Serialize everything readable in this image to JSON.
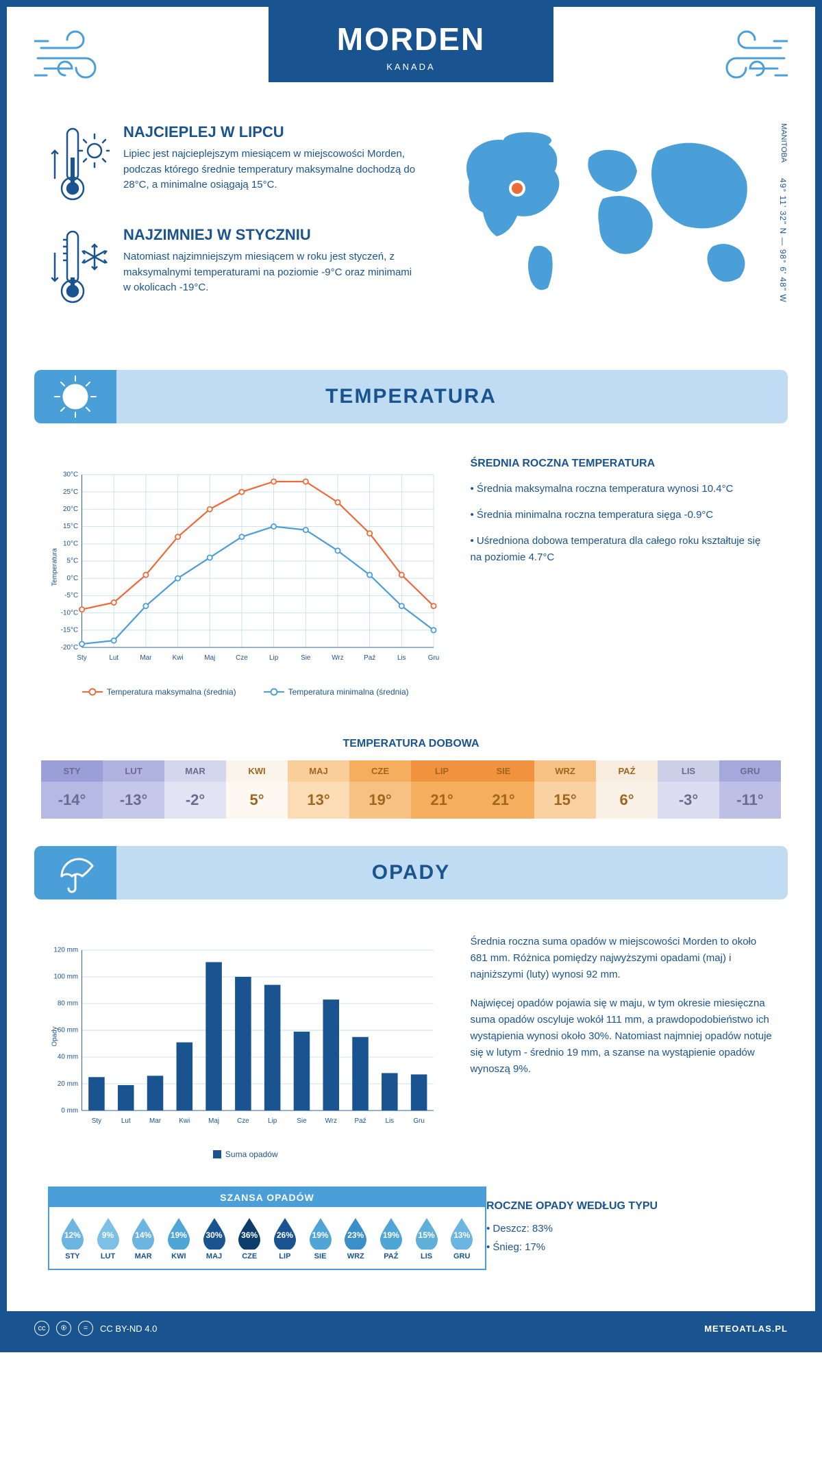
{
  "header": {
    "city": "MORDEN",
    "country": "KANADA"
  },
  "coords": "49° 11' 32\" N — 98° 6' 48\" W",
  "region": "MANITOBA",
  "intro": {
    "hot": {
      "title": "NAJCIEPLEJ W LIPCU",
      "text": "Lipiec jest najcieplejszym miesiącem w miejscowości Morden, podczas którego średnie temperatury maksymalne dochodzą do 28°C, a minimalne osiągają 15°C."
    },
    "cold": {
      "title": "NAJZIMNIEJ W STYCZNIU",
      "text": "Natomiast najzimniejszym miesiącem w roku jest styczeń, z maksymalnymi temperaturami na poziomie -9°C oraz minimami w okolicach -19°C."
    }
  },
  "sections": {
    "temperature_title": "TEMPERATURA",
    "precipitation_title": "OPADY"
  },
  "months_short": [
    "Sty",
    "Lut",
    "Mar",
    "Kwi",
    "Maj",
    "Cze",
    "Lip",
    "Sie",
    "Wrz",
    "Paź",
    "Lis",
    "Gru"
  ],
  "months_upper": [
    "STY",
    "LUT",
    "MAR",
    "KWI",
    "MAJ",
    "CZE",
    "LIP",
    "SIE",
    "WRZ",
    "PAŹ",
    "LIS",
    "GRU"
  ],
  "temp_chart": {
    "type": "line",
    "y_title": "Temperatura",
    "ylim": [
      -20,
      30
    ],
    "ytick_step": 5,
    "ytick_labels": [
      "-20°C",
      "-15°C",
      "-10°C",
      "-5°C",
      "0°C",
      "5°C",
      "10°C",
      "15°C",
      "20°C",
      "25°C",
      "30°C"
    ],
    "grid_color": "#c5dff2",
    "background": "#ffffff",
    "series": {
      "max": {
        "label": "Temperatura maksymalna (średnia)",
        "color": "#ed6b3a",
        "values": [
          -9,
          -7,
          1,
          12,
          20,
          25,
          28,
          28,
          22,
          13,
          1,
          -8
        ]
      },
      "min": {
        "label": "Temperatura minimalna (średnia)",
        "color": "#4a9fd8",
        "values": [
          -19,
          -18,
          -8,
          0,
          6,
          12,
          15,
          14,
          8,
          1,
          -8,
          -15
        ]
      }
    }
  },
  "temp_text": {
    "heading": "ŚREDNIA ROCZNA TEMPERATURA",
    "bullets": [
      "• Średnia maksymalna roczna temperatura wynosi 10.4°C",
      "• Średnia minimalna roczna temperatura sięga -0.9°C",
      "• Uśredniona dobowa temperatura dla całego roku kształtuje się na poziomie 4.7°C"
    ]
  },
  "daily_temp": {
    "title": "TEMPERATURA DOBOWA",
    "values": [
      "-14°",
      "-13°",
      "-2°",
      "5°",
      "13°",
      "19°",
      "21°",
      "21°",
      "15°",
      "6°",
      "-3°",
      "-11°"
    ],
    "head_colors": [
      "#9b9fd8",
      "#b0b3e0",
      "#d4d6ee",
      "#faf4ea",
      "#f9ce9a",
      "#f5ad5e",
      "#f0923e",
      "#f0923e",
      "#f8c184",
      "#f7ecdd",
      "#cdcfe9",
      "#a5a8db"
    ],
    "val_colors": [
      "#b6b9e3",
      "#c6c8ea",
      "#e2e3f3",
      "#fdf9f2",
      "#fbdcb5",
      "#f8c184",
      "#f5ad5e",
      "#f5ad5e",
      "#fad1a0",
      "#faf1e6",
      "#ddddf1",
      "#bdbfe6"
    ],
    "text_color": "#6b6b8f",
    "text_color_warm": "#a0651e"
  },
  "precip_chart": {
    "type": "bar",
    "y_title": "Opady",
    "ylim": [
      0,
      120
    ],
    "ytick_step": 20,
    "ytick_labels": [
      "0 mm",
      "20 mm",
      "40 mm",
      "60 mm",
      "80 mm",
      "100 mm",
      "120 mm"
    ],
    "bar_color": "#1a5490",
    "legend_label": "Suma opadów",
    "values": [
      25,
      19,
      26,
      51,
      111,
      100,
      94,
      59,
      83,
      55,
      28,
      27
    ]
  },
  "precip_text": {
    "p1": "Średnia roczna suma opadów w miejscowości Morden to około 681 mm. Różnica pomiędzy najwyższymi opadami (maj) i najniższymi (luty) wynosi 92 mm.",
    "p2": "Najwięcej opadów pojawia się w maju, w tym okresie miesięczna suma opadów oscyluje wokół 111 mm, a prawdopodobieństwo ich wystąpienia wynosi około 30%. Natomiast najmniej opadów notuje się w lutym - średnio 19 mm, a szanse na wystąpienie opadów wynoszą 9%."
  },
  "chance": {
    "title": "SZANSA OPADÓW",
    "values": [
      "12%",
      "9%",
      "14%",
      "19%",
      "30%",
      "36%",
      "26%",
      "19%",
      "23%",
      "19%",
      "15%",
      "13%"
    ],
    "colors": [
      "#6bb5e0",
      "#7dc0e6",
      "#6bb5e0",
      "#4fa5d5",
      "#1a5490",
      "#0d3d6b",
      "#1a5490",
      "#4fa5d5",
      "#3a8fc8",
      "#4fa5d5",
      "#5fafd9",
      "#6bb5e0"
    ]
  },
  "precip_type": {
    "heading": "ROCZNE OPADY WEDŁUG TYPU",
    "rain": "• Deszcz: 83%",
    "snow": "• Śnieg: 17%"
  },
  "footer": {
    "license": "CC BY-ND 4.0",
    "site": "METEOATLAS.PL"
  }
}
